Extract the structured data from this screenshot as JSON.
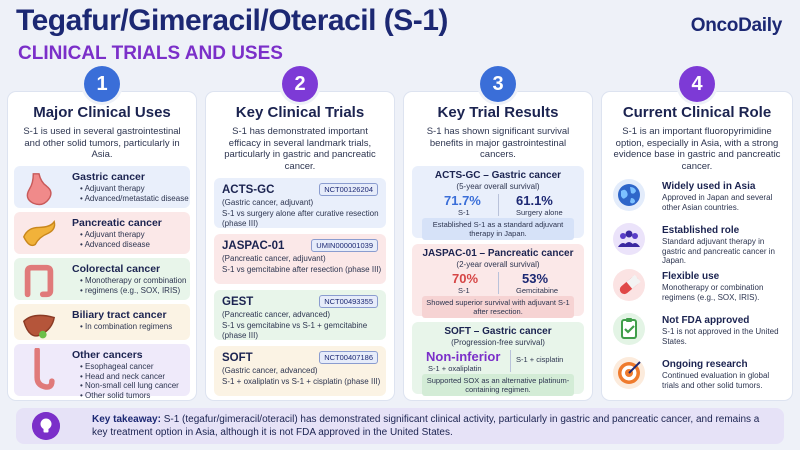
{
  "header": {
    "title": "Tegafur/Gimeracil/Oteracil (S-1)",
    "subtitle": "CLINICAL TRIALS AND USES",
    "brand": "OncoDaily"
  },
  "colors": {
    "navy": "#1c2873",
    "purple": "#7b2fc9",
    "col1": "#3a6ed8",
    "col2": "#7d3ad6",
    "col3": "#3a6ed8",
    "col4": "#7d3ad6"
  },
  "columns": [
    {
      "number": "1",
      "heading": "Major Clinical Uses",
      "intro": "S-1 is used in several gastrointestinal and other solid tumors, particularly in Asia.",
      "items": [
        {
          "icon": "stomach-icon",
          "title": "Gastric cancer",
          "bullets": [
            "Adjuvant therapy",
            "Advanced/metastatic disease"
          ]
        },
        {
          "icon": "pancreas-icon",
          "title": "Pancreatic cancer",
          "bullets": [
            "Adjuvant therapy",
            "Advanced disease"
          ]
        },
        {
          "icon": "colon-icon",
          "title": "Colorectal cancer",
          "bullets": [
            "Monotherapy or combination",
            "regimens (e.g., SOX, IRIS)"
          ]
        },
        {
          "icon": "liver-icon",
          "title": "Biliary tract cancer",
          "bullets": [
            "In combination regimens"
          ]
        },
        {
          "icon": "esophagus-icon",
          "title": "Other cancers",
          "bullets": [
            "Esophageal cancer",
            "Head and neck cancer",
            "Non-small cell lung cancer",
            "Other solid tumors"
          ]
        }
      ]
    },
    {
      "number": "2",
      "heading": "Key Clinical Trials",
      "intro": "S-1 has demonstrated important efficacy in several landmark trials, particularly in gastric and pancreatic cancer.",
      "trials": [
        {
          "name": "ACTS-GC",
          "id": "NCT00126204",
          "sub": "(Gastric cancer, adjuvant)",
          "desc": "S-1 vs surgery alone after curative resection (phase III)"
        },
        {
          "name": "JASPAC-01",
          "id": "UMIN000001039",
          "sub": "(Pancreatic cancer, adjuvant)",
          "desc": "S-1 vs gemcitabine after resection (phase III)"
        },
        {
          "name": "GEST",
          "id": "NCT00493355",
          "sub": "(Pancreatic cancer, advanced)",
          "desc": "S-1 vs gemcitabine vs S-1 + gemcitabine (phase III)"
        },
        {
          "name": "SOFT",
          "id": "NCT00407186",
          "sub": "(Gastric cancer, advanced)",
          "desc": "S-1 + oxaliplatin vs S-1 + cisplatin (phase III)"
        }
      ]
    },
    {
      "number": "3",
      "heading": "Key Trial Results",
      "intro": "S-1 has shown significant survival benefits in major gastrointestinal cancers.",
      "results": [
        {
          "title": "ACTS-GC – Gastric cancer",
          "sub": "(5-year overall survival)",
          "left_val": "71.7%",
          "left_lbl": "S-1",
          "right_val": "61.1%",
          "right_lbl": "Surgery alone",
          "note": "Established S-1 as a standard adjuvant therapy in Japan."
        },
        {
          "title": "JASPAC-01 – Pancreatic cancer",
          "sub": "(2-year overall survival)",
          "left_val": "70%",
          "left_lbl": "S-1",
          "right_val": "53%",
          "right_lbl": "Gemcitabine",
          "note": "Showed superior survival with adjuvant S-1 after resection."
        },
        {
          "title": "SOFT – Gastric cancer",
          "sub": "(Progression-free survival)",
          "left_val": "Non-inferior",
          "left_lbl": "S-1 + oxaliplatin",
          "right_val": "",
          "right_lbl": "S-1 + cisplatin",
          "note": "Supported SOX as an alternative platinum-containing regimen."
        }
      ]
    },
    {
      "number": "4",
      "heading": "Current Clinical Role",
      "intro": "S-1 is an important fluoropyrimidine option, especially in Asia, with a strong evidence base in gastric and pancreatic cancer.",
      "roles": [
        {
          "icon": "globe-icon",
          "title": "Widely used in Asia",
          "desc": "Approved in Japan and several other Asian countries."
        },
        {
          "icon": "people-icon",
          "title": "Established role",
          "desc": "Standard adjuvant therapy in gastric and pancreatic cancer in Japan."
        },
        {
          "icon": "pill-icon",
          "title": "Flexible use",
          "desc": "Monotherapy or combination regimens (e.g., SOX, IRIS)."
        },
        {
          "icon": "clipboard-check-icon",
          "title": "Not FDA approved",
          "desc": "S-1 is not approved in the United States."
        },
        {
          "icon": "target-icon",
          "title": "Ongoing research",
          "desc": "Continued evaluation in global trials and other solid tumors."
        }
      ]
    }
  ],
  "takeaway": {
    "label": "Key takeaway:",
    "text": "S-1 (tegafur/gimeracil/oteracil) has demonstrated significant clinical activity, particularly in gastric and pancreatic cancer, and remains a key treatment option in Asia, although it is not FDA approved in the United States."
  }
}
